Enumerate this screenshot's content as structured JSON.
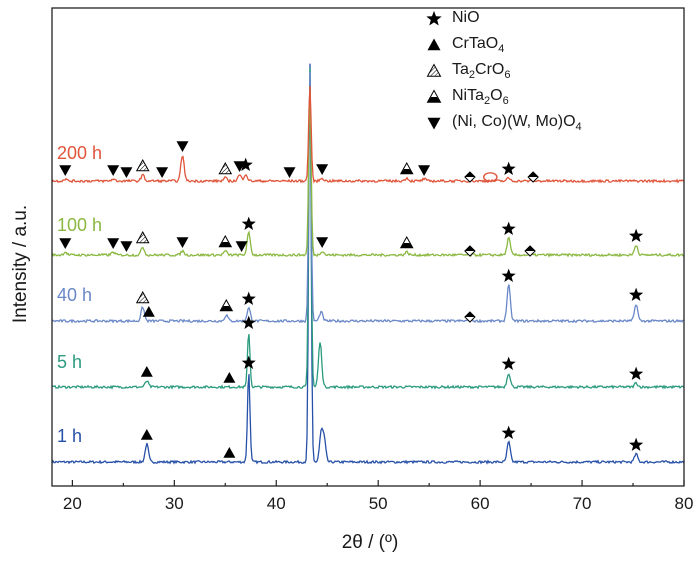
{
  "chart_data": {
    "type": "line",
    "title": "",
    "xlabel": "2θ / (º)",
    "ylabel": "Intensity / a.u.",
    "xlim": [
      18,
      80
    ],
    "xticks": [
      20,
      30,
      40,
      50,
      60,
      70,
      80
    ],
    "y_ticks_shown": false,
    "grid": false,
    "legend_position": "top-right",
    "legend": [
      {
        "marker": "filled-star",
        "label": "NiO",
        "sub_html": "NiO"
      },
      {
        "marker": "filled-triangle-up",
        "label": "CrTaO4",
        "sub_html": "CrTaO<sub>4</sub>"
      },
      {
        "marker": "hatched-triangle-up",
        "label": "Ta2CrO6",
        "sub_html": "Ta<sub>2</sub>CrO<sub>6</sub>"
      },
      {
        "marker": "half-filled-triangle-up",
        "label": "NiTa2O6",
        "sub_html": "NiTa<sub>2</sub>O<sub>6</sub>"
      },
      {
        "marker": "filled-triangle-down",
        "label": "(Ni, Co)(W, Mo)O4",
        "sub_html": "(Ni, Co)(W, Mo)O<sub>4</sub>"
      }
    ],
    "series": [
      {
        "name": "1 h",
        "color": "#2750a8",
        "peaks": [
          {
            "x": 27.3,
            "h": 18
          },
          {
            "x": 37.3,
            "h": 90
          },
          {
            "x": 43.3,
            "h": 400
          },
          {
            "x": 44.4,
            "h": 28
          },
          {
            "x": 44.7,
            "h": 22
          },
          {
            "x": 62.8,
            "h": 20
          },
          {
            "x": 75.3,
            "h": 8
          }
        ],
        "markers": [
          {
            "x": 27.3,
            "type": "filled-triangle-up"
          },
          {
            "x": 35.4,
            "type": "filled-triangle-up"
          },
          {
            "x": 37.3,
            "type": "filled-star"
          },
          {
            "x": 62.8,
            "type": "filled-star"
          },
          {
            "x": 75.3,
            "type": "filled-star"
          }
        ]
      },
      {
        "name": "5 h",
        "color": "#2a9a7e",
        "peaks": [
          {
            "x": 27.3,
            "h": 6
          },
          {
            "x": 37.3,
            "h": 55
          },
          {
            "x": 43.3,
            "h": 320
          },
          {
            "x": 44.3,
            "h": 45
          },
          {
            "x": 62.8,
            "h": 14
          },
          {
            "x": 75.3,
            "h": 4
          }
        ],
        "markers": [
          {
            "x": 27.3,
            "type": "filled-triangle-up"
          },
          {
            "x": 35.4,
            "type": "filled-triangle-up"
          },
          {
            "x": 37.3,
            "type": "filled-star"
          },
          {
            "x": 62.8,
            "type": "filled-star"
          },
          {
            "x": 75.3,
            "type": "filled-star"
          }
        ]
      },
      {
        "name": "40 h",
        "color": "#6a88c8",
        "peaks": [
          {
            "x": 26.9,
            "h": 14
          },
          {
            "x": 35.1,
            "h": 6
          },
          {
            "x": 37.3,
            "h": 13
          },
          {
            "x": 43.3,
            "h": 250
          },
          {
            "x": 44.4,
            "h": 9
          },
          {
            "x": 59.0,
            "h": 3
          },
          {
            "x": 62.8,
            "h": 36
          },
          {
            "x": 75.3,
            "h": 17
          }
        ],
        "markers": [
          {
            "x": 26.9,
            "type": "hatched-triangle-up"
          },
          {
            "x": 27.5,
            "type": "filled-triangle-up"
          },
          {
            "x": 35.1,
            "type": "half-filled-triangle-up"
          },
          {
            "x": 37.3,
            "type": "filled-star"
          },
          {
            "x": 59.0,
            "type": "diamond"
          },
          {
            "x": 62.8,
            "type": "filled-star"
          },
          {
            "x": 75.3,
            "type": "filled-star"
          }
        ]
      },
      {
        "name": "100 h",
        "color": "#8ab840",
        "peaks": [
          {
            "x": 19.3,
            "h": 3
          },
          {
            "x": 24.0,
            "h": 3
          },
          {
            "x": 26.9,
            "h": 8
          },
          {
            "x": 30.8,
            "h": 4
          },
          {
            "x": 35.0,
            "h": 4
          },
          {
            "x": 37.3,
            "h": 22
          },
          {
            "x": 43.3,
            "h": 165
          },
          {
            "x": 44.5,
            "h": 4
          },
          {
            "x": 52.8,
            "h": 3
          },
          {
            "x": 62.8,
            "h": 17
          },
          {
            "x": 75.3,
            "h": 10
          }
        ],
        "markers": [
          {
            "x": 19.3,
            "type": "filled-triangle-down"
          },
          {
            "x": 24.0,
            "type": "filled-triangle-down"
          },
          {
            "x": 25.3,
            "type": "filled-triangle-down"
          },
          {
            "x": 26.9,
            "type": "hatched-triangle-up"
          },
          {
            "x": 30.8,
            "type": "filled-triangle-down"
          },
          {
            "x": 35.0,
            "type": "half-filled-triangle-up"
          },
          {
            "x": 36.6,
            "type": "filled-triangle-down"
          },
          {
            "x": 37.3,
            "type": "filled-star"
          },
          {
            "x": 44.5,
            "type": "filled-triangle-down"
          },
          {
            "x": 52.8,
            "type": "half-filled-triangle-up"
          },
          {
            "x": 59.0,
            "type": "diamond"
          },
          {
            "x": 62.8,
            "type": "filled-star"
          },
          {
            "x": 64.9,
            "type": "diamond"
          },
          {
            "x": 75.3,
            "type": "filled-star"
          }
        ]
      },
      {
        "name": "200 h",
        "color": "#e0553a",
        "peaks": [
          {
            "x": 19.3,
            "h": 2
          },
          {
            "x": 24.0,
            "h": 2
          },
          {
            "x": 26.9,
            "h": 6
          },
          {
            "x": 30.8,
            "h": 26
          },
          {
            "x": 35.0,
            "h": 3
          },
          {
            "x": 36.4,
            "h": 6
          },
          {
            "x": 37.0,
            "h": 7
          },
          {
            "x": 43.3,
            "h": 95
          },
          {
            "x": 44.5,
            "h": 3
          },
          {
            "x": 52.8,
            "h": 3
          },
          {
            "x": 54.5,
            "h": 2
          },
          {
            "x": 62.8,
            "h": 3
          }
        ],
        "markers": [
          {
            "x": 19.3,
            "type": "filled-triangle-down"
          },
          {
            "x": 24.0,
            "type": "filled-triangle-down"
          },
          {
            "x": 25.3,
            "type": "filled-triangle-down"
          },
          {
            "x": 26.9,
            "type": "hatched-triangle-up"
          },
          {
            "x": 28.8,
            "type": "filled-triangle-down"
          },
          {
            "x": 30.8,
            "type": "filled-triangle-down"
          },
          {
            "x": 35.0,
            "type": "hatched-triangle-up"
          },
          {
            "x": 36.4,
            "type": "filled-triangle-down"
          },
          {
            "x": 37.0,
            "type": "filled-star"
          },
          {
            "x": 41.3,
            "type": "filled-triangle-down"
          },
          {
            "x": 44.5,
            "type": "filled-triangle-down"
          },
          {
            "x": 52.8,
            "type": "half-filled-triangle-up"
          },
          {
            "x": 54.5,
            "type": "filled-triangle-down"
          },
          {
            "x": 59.0,
            "type": "diamond"
          },
          {
            "x": 61.0,
            "type": "circle"
          },
          {
            "x": 62.8,
            "type": "filled-star"
          },
          {
            "x": 65.2,
            "type": "diamond"
          }
        ]
      }
    ]
  }
}
